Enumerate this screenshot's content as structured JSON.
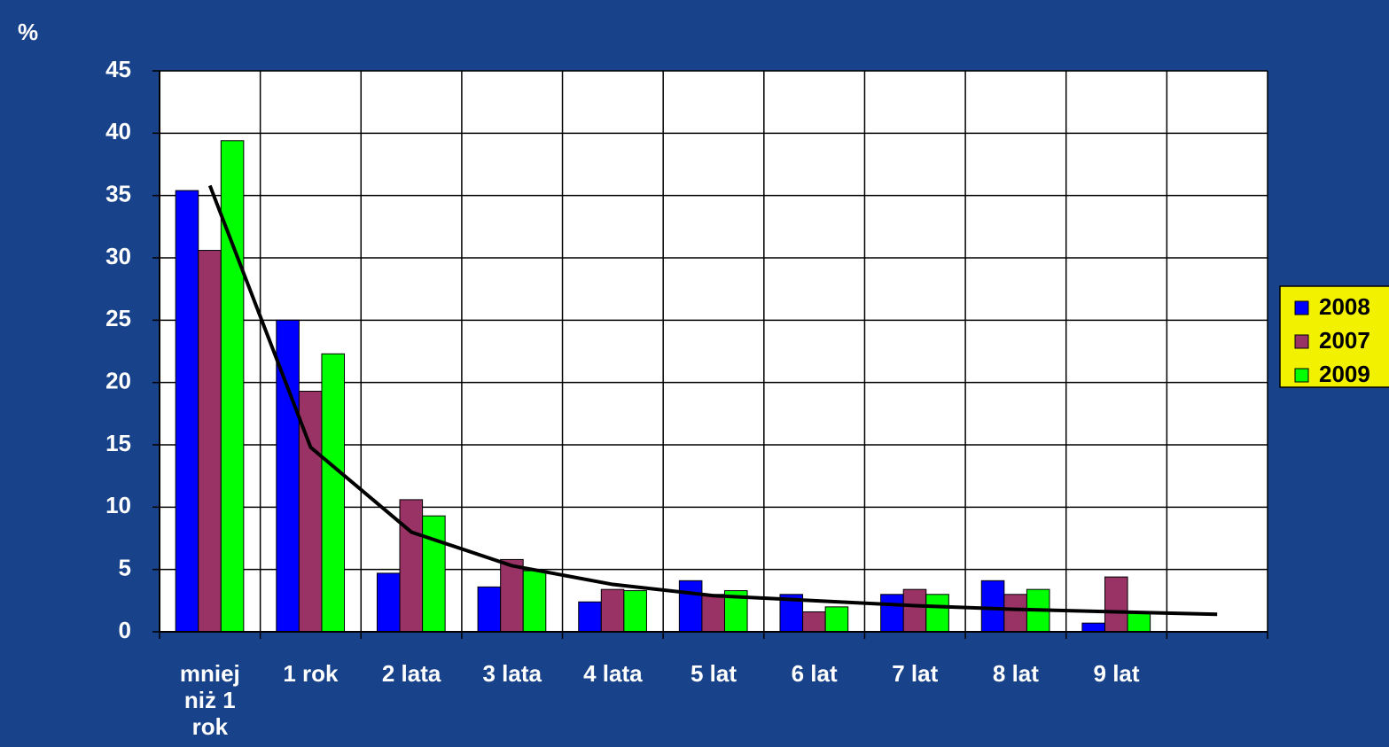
{
  "chart_data": {
    "type": "bar",
    "y_label": "%",
    "categories": [
      "mniej niż 1 rok",
      "1 rok",
      "2 lata",
      "3 lata",
      "4 lata",
      "5 lat",
      "6 lat",
      "7 lat",
      "8 lat",
      "9 lat",
      null
    ],
    "series": [
      {
        "name": "2008",
        "color": "#0000ff",
        "values": [
          35.4,
          25,
          4.7,
          3.6,
          2.4,
          4.1,
          3.0,
          3.0,
          4.1,
          0.7,
          null
        ]
      },
      {
        "name": "2007",
        "color": "#993366",
        "values": [
          30.6,
          19.3,
          10.6,
          5.8,
          3.4,
          3.0,
          1.6,
          3.4,
          3.0,
          4.4,
          null
        ]
      },
      {
        "name": "2009",
        "color": "#00ff00",
        "values": [
          39.4,
          22.3,
          9.3,
          4.9,
          3.3,
          3.3,
          2.0,
          3.0,
          3.4,
          1.6,
          null
        ]
      }
    ],
    "trendline": {
      "color": "#000000",
      "values": [
        35.8,
        14.8,
        8.0,
        5.3,
        3.8,
        2.9,
        2.5,
        2.1,
        1.8,
        1.6,
        1.4
      ]
    },
    "ylim": [
      0,
      45
    ],
    "yticks": [
      0,
      5,
      10,
      15,
      20,
      25,
      30,
      35,
      40,
      45
    ],
    "grid": true,
    "legend": "right"
  }
}
